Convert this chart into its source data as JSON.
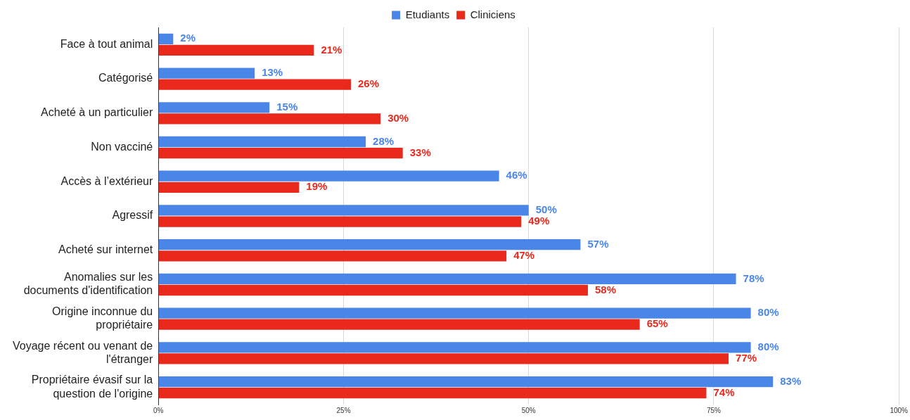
{
  "chart_data": {
    "type": "bar",
    "orientation": "horizontal",
    "legend": "top",
    "grid": "x",
    "categories": [
      "Face à tout animal",
      "Catégorisé",
      "Acheté à un particulier",
      "Non vacciné",
      "Accès à l’extérieur",
      "Agressif",
      "Acheté sur internet",
      "Anomalies sur les documents d'identification",
      "Origine inconnue du propriétaire",
      "Voyage récent ou venant de l'étranger",
      "Propriétaire évasif sur la question de l'origine"
    ],
    "series": [
      {
        "name": "Etudiants",
        "color": "#4a86e8",
        "values": [
          2,
          13,
          15,
          28,
          46,
          50,
          57,
          78,
          80,
          80,
          83
        ],
        "value_labels": [
          "2%",
          "13%",
          "15%",
          "28%",
          "46%",
          "50%",
          "57%",
          "78%",
          "80%",
          "80%",
          "83%"
        ]
      },
      {
        "name": "Cliniciens",
        "color": "#e8291c",
        "values": [
          21,
          26,
          30,
          33,
          19,
          49,
          47,
          58,
          65,
          77,
          74
        ],
        "value_labels": [
          "21%",
          "26%",
          "30%",
          "33%",
          "19%",
          "49%",
          "47%",
          "58%",
          "65%",
          "77%",
          "74%"
        ]
      }
    ],
    "xlim": [
      0,
      100
    ],
    "xticks": [
      {
        "value": 0,
        "label": "0%"
      },
      {
        "value": 25,
        "label": "25%"
      },
      {
        "value": 50,
        "label": "50%"
      },
      {
        "value": 75,
        "label": "75%"
      },
      {
        "value": 100,
        "label": "100%"
      }
    ]
  }
}
